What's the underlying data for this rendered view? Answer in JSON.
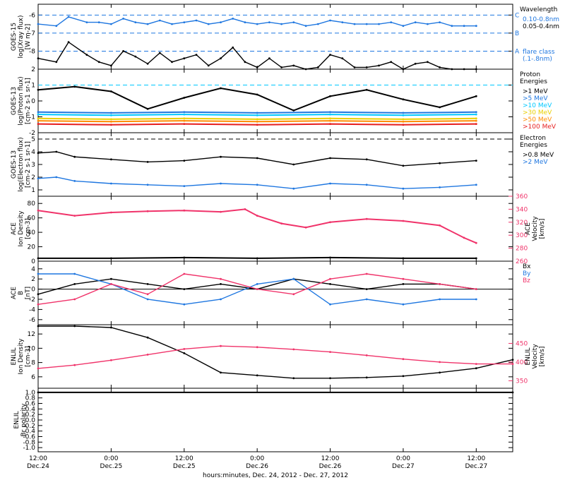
{
  "colors": {
    "black": "#000000",
    "xray_long": "#1f77e0",
    "cyan": "#00c8ff",
    "blue": "#1f77e0",
    "pink": "#f0336a",
    "green": "#22cc22",
    "yellow": "#e8d000",
    "orange": "#ff8c00",
    "red": "#e61e1e"
  },
  "x_axis": {
    "title": "hours:minutes, Dec. 24, 2012 - Dec. 27, 2012",
    "ticks": [
      {
        "hour": 0,
        "time": "12:00",
        "date": "Dec.24"
      },
      {
        "hour": 12,
        "time": "0:00",
        "date": "Dec.25"
      },
      {
        "hour": 24,
        "time": "12:00",
        "date": "Dec.25"
      },
      {
        "hour": 36,
        "time": "0:00",
        "date": "Dec.26"
      },
      {
        "hour": 48,
        "time": "12:00",
        "date": "Dec.26"
      },
      {
        "hour": 60,
        "time": "0:00",
        "date": "Dec.27"
      },
      {
        "hour": 72,
        "time": "12:00",
        "date": "Dec.27"
      }
    ]
  },
  "chart_data": [
    {
      "id": "goes15-xray",
      "type": "line",
      "ylabel_lines": [
        "GOES-15",
        "log(Xray flux)",
        "[W m-2]"
      ],
      "ylim": [
        -9,
        -5.4
      ],
      "yticks": [
        -8,
        -7,
        -6
      ],
      "grid": false,
      "legend_position": "right",
      "legend_title": "Wavelength",
      "legend": [
        {
          "label": "0.10-0.8nm",
          "color_key": "xray_long"
        },
        {
          "label": "0.05-0.4nm",
          "color_key": "black"
        }
      ],
      "flare_levels": [
        {
          "class": "C",
          "value": -6
        },
        {
          "class": "B",
          "value": -7
        },
        {
          "class": "A",
          "value": -8
        }
      ],
      "flare_note": [
        "flare class",
        "(.1-.8nm)"
      ],
      "series": [
        {
          "name": "0.10-0.8nm",
          "color_key": "xray_long",
          "x": [
            0,
            3,
            5,
            8,
            10,
            12,
            14,
            16,
            18,
            20,
            22,
            24,
            26,
            28,
            30,
            32,
            34,
            36,
            38,
            40,
            42,
            44,
            46,
            48,
            50,
            52,
            54,
            56,
            58,
            60,
            62,
            64,
            66,
            68,
            70,
            72
          ],
          "y": [
            -6.5,
            -6.6,
            -6.1,
            -6.4,
            -6.4,
            -6.5,
            -6.2,
            -6.4,
            -6.5,
            -6.3,
            -6.5,
            -6.4,
            -6.3,
            -6.5,
            -6.4,
            -6.2,
            -6.4,
            -6.5,
            -6.4,
            -6.5,
            -6.4,
            -6.6,
            -6.5,
            -6.3,
            -6.4,
            -6.5,
            -6.5,
            -6.5,
            -6.4,
            -6.6,
            -6.4,
            -6.5,
            -6.4,
            -6.6,
            -6.6,
            -6.6
          ]
        },
        {
          "name": "0.05-0.4nm",
          "color_key": "black",
          "x": [
            0,
            3,
            5,
            8,
            10,
            12,
            14,
            16,
            18,
            20,
            22,
            24,
            26,
            28,
            30,
            32,
            34,
            36,
            38,
            40,
            42,
            44,
            46,
            48,
            50,
            52,
            54,
            56,
            58,
            60,
            62,
            64,
            66,
            68,
            70,
            72
          ],
          "y": [
            -8.4,
            -8.6,
            -7.5,
            -8.2,
            -8.6,
            -8.8,
            -8.0,
            -8.3,
            -8.7,
            -8.1,
            -8.6,
            -8.4,
            -8.2,
            -8.8,
            -8.4,
            -7.8,
            -8.6,
            -8.9,
            -8.4,
            -8.9,
            -8.8,
            -9.0,
            -8.9,
            -8.2,
            -8.4,
            -8.9,
            -8.9,
            -8.8,
            -8.6,
            -9.0,
            -8.7,
            -8.6,
            -8.9,
            -9.0,
            -9.0,
            -9.0
          ]
        }
      ]
    },
    {
      "id": "goes13-proton",
      "type": "scatter",
      "ylabel_lines": [
        "GOES-13",
        "log(Proton flux)",
        "[cm-2 s-1 sr-1]"
      ],
      "ylim": [
        -2,
        2
      ],
      "yticks": [
        -2,
        -1,
        0,
        1,
        2
      ],
      "reference_line": 1,
      "legend_position": "right",
      "legend_title": [
        "Proton",
        "Energies"
      ],
      "legend": [
        {
          "label": ">1 MeV",
          "color_key": "black"
        },
        {
          "label": ">5 MeV",
          "color_key": "blue"
        },
        {
          "label": ">10 MeV",
          "color_key": "cyan"
        },
        {
          "label": ">30 MeV",
          "color_key": "yellow"
        },
        {
          "label": ">50 MeV",
          "color_key": "orange"
        },
        {
          "label": ">100 MeV",
          "color_key": "red"
        }
      ],
      "series": [
        {
          "name": ">1 MeV",
          "color_key": "black",
          "x": [
            0,
            6,
            12,
            18,
            24,
            30,
            36,
            42,
            48,
            54,
            60,
            66,
            72
          ],
          "y": [
            0.7,
            0.9,
            0.6,
            -0.5,
            0.2,
            0.8,
            0.4,
            -0.6,
            0.3,
            0.7,
            0.1,
            -0.4,
            0.3
          ]
        },
        {
          "name": ">5 MeV",
          "color_key": "blue",
          "x": [
            0,
            12,
            24,
            36,
            48,
            60,
            72
          ],
          "y": [
            -0.7,
            -0.75,
            -0.7,
            -0.75,
            -0.7,
            -0.75,
            -0.7
          ]
        },
        {
          "name": ">10 MeV",
          "color_key": "cyan",
          "x": [
            0,
            12,
            24,
            36,
            48,
            60,
            72
          ],
          "y": [
            -0.85,
            -0.9,
            -0.85,
            -0.9,
            -0.85,
            -0.9,
            -0.85
          ]
        },
        {
          "name": ">30 MeV",
          "color_key": "yellow",
          "x": [
            0,
            12,
            24,
            36,
            48,
            60,
            72
          ],
          "y": [
            -1.1,
            -1.15,
            -1.1,
            -1.15,
            -1.1,
            -1.15,
            -1.1
          ]
        },
        {
          "name": ">50 MeV",
          "color_key": "orange",
          "x": [
            0,
            12,
            24,
            36,
            48,
            60,
            72
          ],
          "y": [
            -1.25,
            -1.3,
            -1.25,
            -1.3,
            -1.25,
            -1.3,
            -1.25
          ]
        },
        {
          "name": ">100 MeV",
          "color_key": "red",
          "x": [
            0,
            12,
            24,
            36,
            48,
            60,
            72
          ],
          "y": [
            -1.45,
            -1.5,
            -1.45,
            -1.5,
            -1.45,
            -1.5,
            -1.45
          ]
        }
      ]
    },
    {
      "id": "goes13-electron",
      "type": "line",
      "ylabel_lines": [
        "GOES-13",
        "log(Electron flux)",
        "[cm-2 s-1 sr-1]"
      ],
      "ylim": [
        0.5,
        5.5
      ],
      "yticks": [
        1,
        2,
        3,
        4,
        5
      ],
      "reference_line": 5,
      "legend_position": "right",
      "legend_title": [
        "Electron",
        "Energies"
      ],
      "legend": [
        {
          "label": ">0.8 MeV",
          "color_key": "black"
        },
        {
          "label": ">2 MeV",
          "color_key": "blue"
        }
      ],
      "series": [
        {
          "name": ">0.8 MeV",
          "color_key": "black",
          "x": [
            0,
            3,
            6,
            12,
            18,
            24,
            30,
            36,
            42,
            48,
            54,
            60,
            66,
            72
          ],
          "y": [
            3.9,
            4.0,
            3.6,
            3.4,
            3.2,
            3.3,
            3.6,
            3.5,
            3.0,
            3.5,
            3.4,
            2.9,
            3.1,
            3.3
          ]
        },
        {
          "name": ">2 MeV",
          "color_key": "blue",
          "x": [
            0,
            3,
            6,
            12,
            18,
            24,
            30,
            36,
            42,
            48,
            54,
            60,
            66,
            72
          ],
          "y": [
            1.9,
            2.0,
            1.7,
            1.5,
            1.4,
            1.3,
            1.5,
            1.4,
            1.1,
            1.5,
            1.4,
            1.1,
            1.2,
            1.4
          ]
        }
      ]
    },
    {
      "id": "ace-plasma",
      "type": "scatter",
      "ylabel_lines": [
        "ACE",
        "Ion Density",
        "[cm-3]"
      ],
      "ylim": [
        0,
        90
      ],
      "yticks": [
        0,
        20,
        40,
        60,
        80
      ],
      "y2label_lines": [
        "ACE",
        "Velocity",
        "[km/s]"
      ],
      "y2lim": [
        260,
        360
      ],
      "y2ticks": [
        260,
        280,
        300,
        320,
        340,
        360
      ],
      "series": [
        {
          "name": "",
          "axis": "left",
          "color_key": "black",
          "x": [
            0,
            12,
            24,
            36,
            48,
            60,
            72
          ],
          "y": [
            4,
            4,
            5,
            4,
            5,
            4,
            4
          ]
        },
        {
          "name": "",
          "axis": "right",
          "color_key": "pink",
          "x": [
            0,
            6,
            12,
            18,
            24,
            30,
            34,
            36,
            40,
            44,
            48,
            54,
            60,
            66,
            70,
            72
          ],
          "y": [
            338,
            330,
            335,
            337,
            338,
            336,
            340,
            330,
            318,
            312,
            320,
            325,
            322,
            315,
            296,
            288
          ]
        }
      ]
    },
    {
      "id": "ace-mag",
      "type": "line",
      "ylabel_lines": [
        "ACE",
        "B",
        "[nT]"
      ],
      "ylim": [
        -7,
        5.5
      ],
      "yticks": [
        -6,
        -4,
        -2,
        0,
        2,
        4
      ],
      "zero_line": true,
      "legend_position": "right",
      "legend": [
        {
          "label": "Bx",
          "color_key": "black"
        },
        {
          "label": "By",
          "color_key": "blue"
        },
        {
          "label": "Bz",
          "color_key": "pink"
        }
      ],
      "series": [
        {
          "name": "Bx",
          "color_key": "black",
          "x": [
            0,
            6,
            12,
            18,
            24,
            30,
            36,
            42,
            48,
            54,
            60,
            66,
            72
          ],
          "y": [
            -1,
            1,
            2,
            1,
            0,
            1,
            0,
            2,
            1,
            0,
            1,
            1,
            0
          ]
        },
        {
          "name": "By",
          "color_key": "blue",
          "x": [
            0,
            6,
            12,
            18,
            24,
            30,
            36,
            42,
            48,
            54,
            60,
            66,
            72
          ],
          "y": [
            3,
            3,
            1,
            -2,
            -3,
            -2,
            1,
            2,
            -3,
            -2,
            -3,
            -2,
            -2
          ]
        },
        {
          "name": "Bz",
          "color_key": "pink",
          "x": [
            0,
            6,
            12,
            18,
            24,
            30,
            36,
            42,
            48,
            54,
            60,
            66,
            72
          ],
          "y": [
            -3,
            -2,
            1,
            -1,
            3,
            2,
            0,
            -1,
            2,
            3,
            2,
            1,
            0
          ]
        }
      ]
    },
    {
      "id": "enlil-plasma",
      "type": "line",
      "ylabel_lines": [
        "ENLIL",
        "Ion Density",
        "[cm-3]"
      ],
      "ylim": [
        4.4,
        13.3
      ],
      "yticks": [
        6,
        8,
        10,
        12
      ],
      "y2label_lines": [
        "ENLIL",
        "Velocity",
        "[km/s]"
      ],
      "y2lim": [
        330,
        500
      ],
      "y2ticks": [
        350,
        400,
        450
      ],
      "series": [
        {
          "name": "",
          "axis": "left",
          "color_key": "black",
          "x": [
            0,
            6,
            12,
            18,
            24,
            30,
            36,
            42,
            48,
            54,
            60,
            66,
            72,
            78
          ],
          "y": [
            13.1,
            13.1,
            12.9,
            11.5,
            9.3,
            6.6,
            6.2,
            5.8,
            5.8,
            5.9,
            6.1,
            6.6,
            7.2,
            8.4
          ]
        },
        {
          "name": "",
          "axis": "right",
          "color_key": "pink",
          "x": [
            0,
            6,
            12,
            18,
            24,
            30,
            36,
            42,
            48,
            54,
            60,
            66,
            72,
            78
          ],
          "y": [
            383,
            392,
            405,
            420,
            435,
            443,
            440,
            434,
            427,
            418,
            408,
            400,
            395,
            395
          ]
        }
      ]
    },
    {
      "id": "enlil-polarity",
      "type": "scatter",
      "ylabel_lines": [
        "ENLIL",
        "Br polarity"
      ],
      "ylim": [
        -1.15,
        1.15
      ],
      "yticks": [
        -1.0,
        -0.8,
        -0.6,
        -0.4,
        -0.2,
        0.0,
        0.2,
        0.4,
        0.6,
        0.8,
        1.0
      ],
      "series": [
        {
          "name": "",
          "color_key": "black",
          "x": [
            0,
            78
          ],
          "y": [
            1.0,
            1.0
          ]
        }
      ]
    }
  ]
}
